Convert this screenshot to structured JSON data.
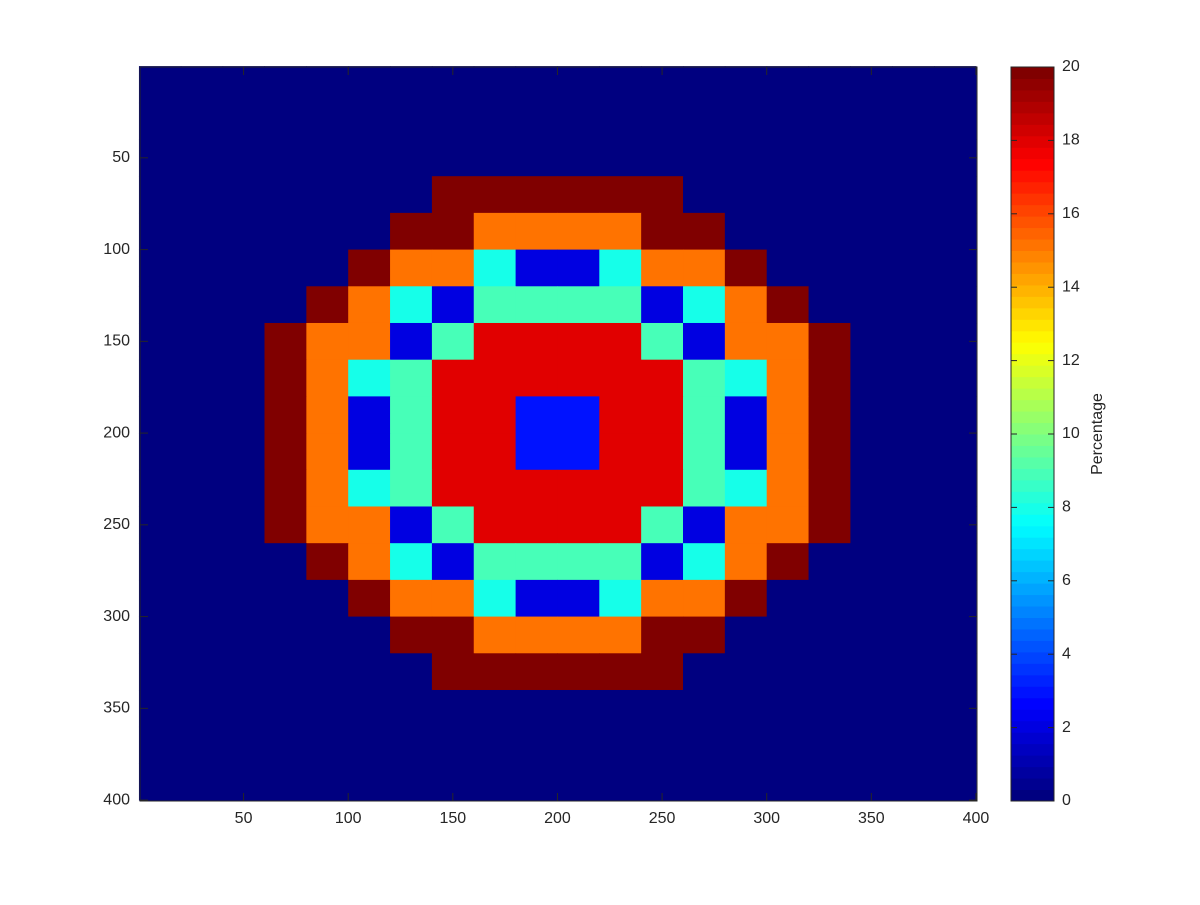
{
  "chart_data": {
    "type": "heatmap",
    "colormap": "jet",
    "y_reversed": true,
    "x": [
      10,
      30,
      50,
      70,
      90,
      110,
      130,
      150,
      170,
      190,
      210,
      230,
      250,
      270,
      290,
      310,
      330,
      350,
      370,
      390
    ],
    "y": [
      10,
      30,
      50,
      70,
      90,
      110,
      130,
      150,
      170,
      190,
      210,
      230,
      250,
      270,
      290,
      310,
      330,
      350,
      370,
      390
    ],
    "values": [
      [
        0,
        0,
        0,
        0,
        0,
        0,
        0,
        0,
        0,
        0,
        0,
        0,
        0,
        0,
        0,
        0,
        0,
        0,
        0,
        0
      ],
      [
        0,
        0,
        0,
        0,
        0,
        0,
        0,
        0,
        0,
        0,
        0,
        0,
        0,
        0,
        0,
        0,
        0,
        0,
        0,
        0
      ],
      [
        0,
        0,
        0,
        0,
        0,
        0,
        0,
        0,
        0,
        0,
        0,
        0,
        0,
        0,
        0,
        0,
        0,
        0,
        0,
        0
      ],
      [
        0,
        0,
        0,
        0,
        0,
        0,
        0,
        20,
        20,
        20,
        20,
        20,
        20,
        0,
        0,
        0,
        0,
        0,
        0,
        0
      ],
      [
        0,
        0,
        0,
        0,
        0,
        0,
        20,
        20,
        15,
        15,
        15,
        15,
        20,
        20,
        0,
        0,
        0,
        0,
        0,
        0
      ],
      [
        0,
        0,
        0,
        0,
        0,
        20,
        15,
        15,
        8,
        2,
        2,
        8,
        15,
        15,
        20,
        0,
        0,
        0,
        0,
        0
      ],
      [
        0,
        0,
        0,
        0,
        20,
        15,
        8,
        2,
        9,
        9,
        9,
        9,
        2,
        8,
        15,
        20,
        0,
        0,
        0,
        0
      ],
      [
        0,
        0,
        0,
        20,
        15,
        15,
        2,
        9,
        18,
        18,
        18,
        18,
        9,
        2,
        15,
        15,
        20,
        0,
        0,
        0
      ],
      [
        0,
        0,
        0,
        20,
        15,
        8,
        9,
        18,
        18,
        18,
        18,
        18,
        18,
        9,
        8,
        15,
        20,
        0,
        0,
        0
      ],
      [
        0,
        0,
        0,
        20,
        15,
        2,
        9,
        18,
        18,
        3,
        3,
        18,
        18,
        9,
        2,
        15,
        20,
        0,
        0,
        0
      ],
      [
        0,
        0,
        0,
        20,
        15,
        2,
        9,
        18,
        18,
        3,
        3,
        18,
        18,
        9,
        2,
        15,
        20,
        0,
        0,
        0
      ],
      [
        0,
        0,
        0,
        20,
        15,
        8,
        9,
        18,
        18,
        18,
        18,
        18,
        18,
        9,
        8,
        15,
        20,
        0,
        0,
        0
      ],
      [
        0,
        0,
        0,
        20,
        15,
        15,
        2,
        9,
        18,
        18,
        18,
        18,
        9,
        2,
        15,
        15,
        20,
        0,
        0,
        0
      ],
      [
        0,
        0,
        0,
        0,
        20,
        15,
        8,
        2,
        9,
        9,
        9,
        9,
        2,
        8,
        15,
        20,
        0,
        0,
        0,
        0
      ],
      [
        0,
        0,
        0,
        0,
        0,
        20,
        15,
        15,
        8,
        2,
        2,
        8,
        15,
        15,
        20,
        0,
        0,
        0,
        0,
        0
      ],
      [
        0,
        0,
        0,
        0,
        0,
        0,
        20,
        20,
        15,
        15,
        15,
        15,
        20,
        20,
        0,
        0,
        0,
        0,
        0,
        0
      ],
      [
        0,
        0,
        0,
        0,
        0,
        0,
        0,
        20,
        20,
        20,
        20,
        20,
        20,
        0,
        0,
        0,
        0,
        0,
        0,
        0
      ],
      [
        0,
        0,
        0,
        0,
        0,
        0,
        0,
        0,
        0,
        0,
        0,
        0,
        0,
        0,
        0,
        0,
        0,
        0,
        0,
        0
      ],
      [
        0,
        0,
        0,
        0,
        0,
        0,
        0,
        0,
        0,
        0,
        0,
        0,
        0,
        0,
        0,
        0,
        0,
        0,
        0,
        0
      ],
      [
        0,
        0,
        0,
        0,
        0,
        0,
        0,
        0,
        0,
        0,
        0,
        0,
        0,
        0,
        0,
        0,
        0,
        0,
        0,
        0
      ]
    ],
    "xlim": [
      0.5,
      400.5
    ],
    "ylim": [
      0.5,
      400.5
    ],
    "xticks": [
      50,
      100,
      150,
      200,
      250,
      300,
      350,
      400
    ],
    "yticks": [
      50,
      100,
      150,
      200,
      250,
      300,
      350,
      400
    ],
    "colorbar_label": "Percentage",
    "clim": [
      0,
      20
    ],
    "cticks": [
      0,
      2,
      4,
      6,
      8,
      10,
      12,
      14,
      16,
      18,
      20
    ]
  }
}
